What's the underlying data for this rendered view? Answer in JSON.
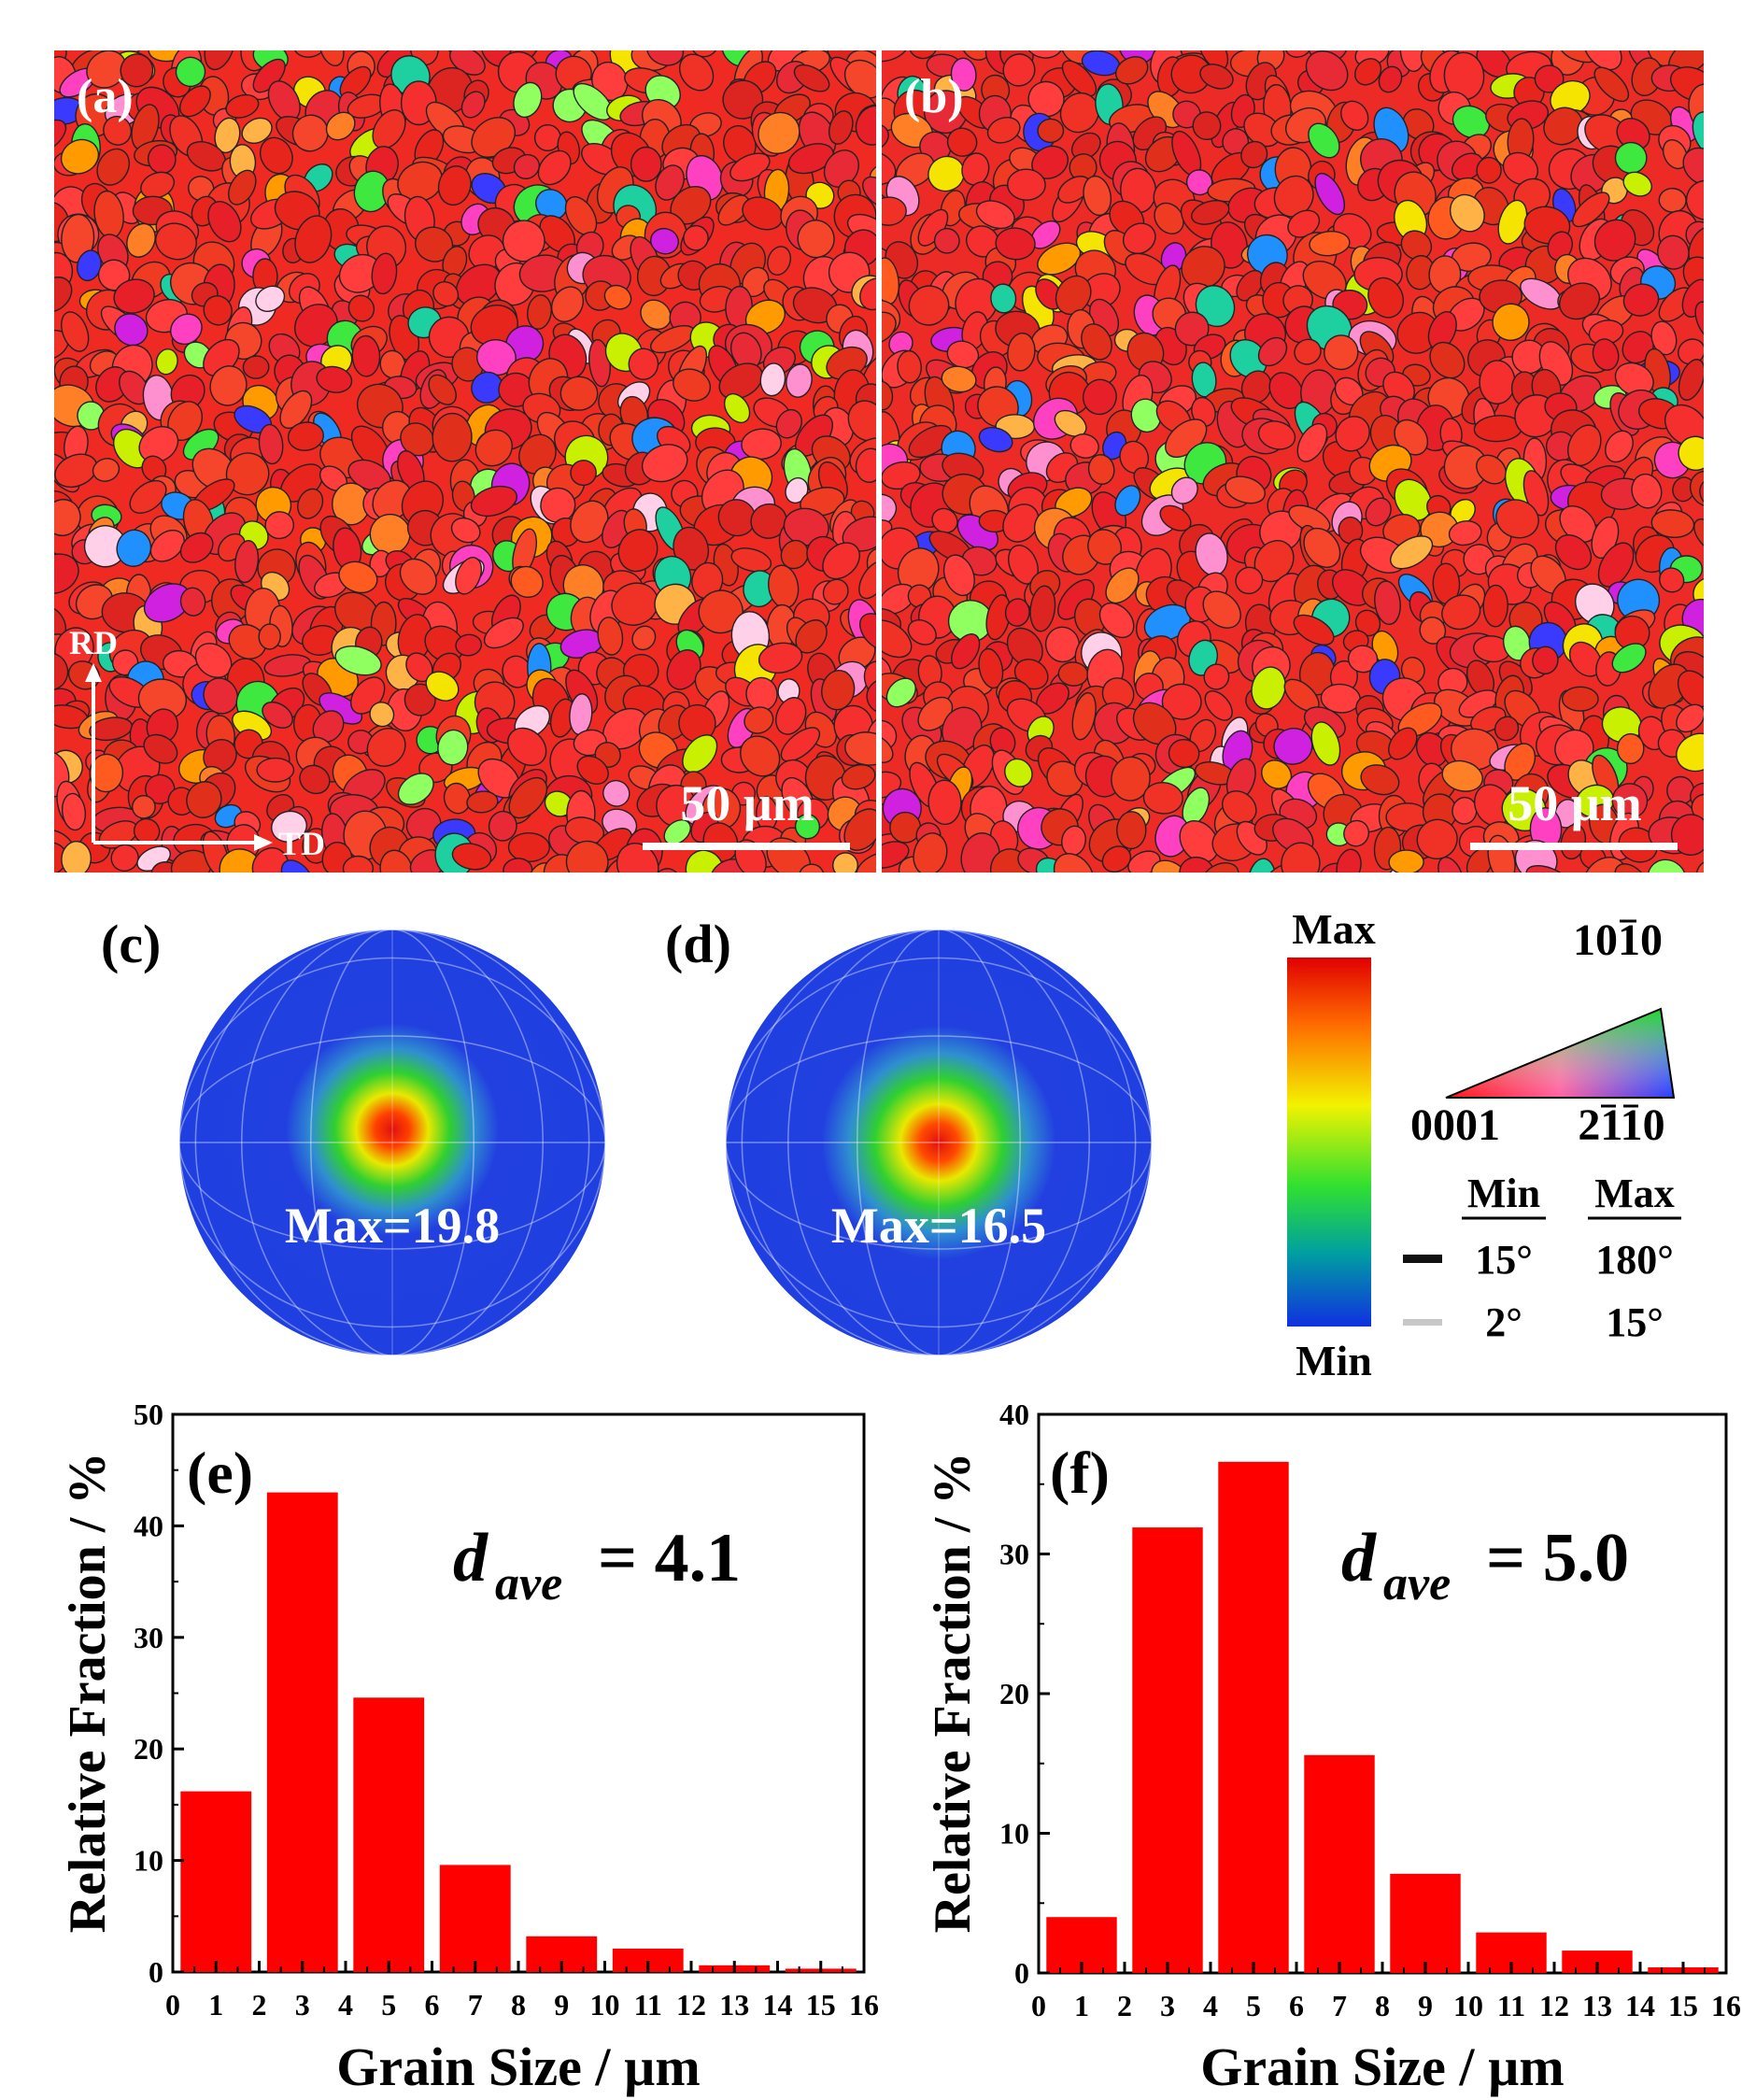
{
  "colors": {
    "grain_red": "#ee2a22",
    "bar_red": "#ff0000",
    "pole_blue": "#1f3fe0",
    "boundary_dark": "#222222",
    "boundary_light": "#c8c8c8"
  },
  "maps": {
    "a": {
      "label": "(a)",
      "scale": "50 µm"
    },
    "b": {
      "label": "(b)",
      "scale": "50 µm"
    },
    "axes": {
      "rd": "RD",
      "td": "TD"
    }
  },
  "pole_figures": {
    "c": {
      "label": "(c)",
      "max_text": "Max=19.8"
    },
    "d": {
      "label": "(d)",
      "max_text": "Max=16.5"
    }
  },
  "legend": {
    "colorbar_max": "Max",
    "colorbar_min": "Min",
    "ipf_top": "1010",
    "ipf_left": "0001",
    "ipf_right": "2110",
    "boundary_header_min": "Min",
    "boundary_header_max": "Max",
    "hagb_min": "15°",
    "hagb_max": "180°",
    "lagb_min": "2°",
    "lagb_max": "15°"
  },
  "chart_data": [
    {
      "panel": "(e)",
      "type": "bar",
      "categories": [
        "1",
        "3",
        "5",
        "7",
        "9",
        "11",
        "13",
        "15"
      ],
      "values": [
        16.2,
        43.0,
        24.6,
        9.6,
        3.2,
        2.1,
        0.6,
        0.3
      ],
      "xlabel": "Grain Size / µm",
      "ylabel": "Relative Fraction / %",
      "xlim": [
        0,
        16
      ],
      "ylim": [
        0,
        50
      ],
      "x_ticks": [
        "0",
        "1",
        "2",
        "3",
        "4",
        "5",
        "6",
        "7",
        "8",
        "9",
        "10",
        "11",
        "12",
        "13",
        "14",
        "15",
        "16"
      ],
      "y_ticks": [
        "0",
        "10",
        "20",
        "30",
        "40",
        "50"
      ],
      "annotation_d": "d",
      "annotation_sub": "ave",
      "annotation_value": "= 4.1"
    },
    {
      "panel": "(f)",
      "type": "bar",
      "categories": [
        "1",
        "3",
        "5",
        "7",
        "9",
        "11",
        "13",
        "15"
      ],
      "values": [
        4.0,
        31.9,
        36.6,
        15.6,
        7.1,
        2.9,
        1.6,
        0.4
      ],
      "xlabel": "Grain Size / µm",
      "ylabel": "Relative Fraction / %",
      "xlim": [
        0,
        16
      ],
      "ylim": [
        0,
        40
      ],
      "x_ticks": [
        "0",
        "1",
        "2",
        "3",
        "4",
        "5",
        "6",
        "7",
        "8",
        "9",
        "10",
        "11",
        "12",
        "13",
        "14",
        "15",
        "16"
      ],
      "y_ticks": [
        "0",
        "10",
        "20",
        "30",
        "40"
      ],
      "annotation_d": "d",
      "annotation_sub": "ave",
      "annotation_value": "= 5.0"
    }
  ]
}
